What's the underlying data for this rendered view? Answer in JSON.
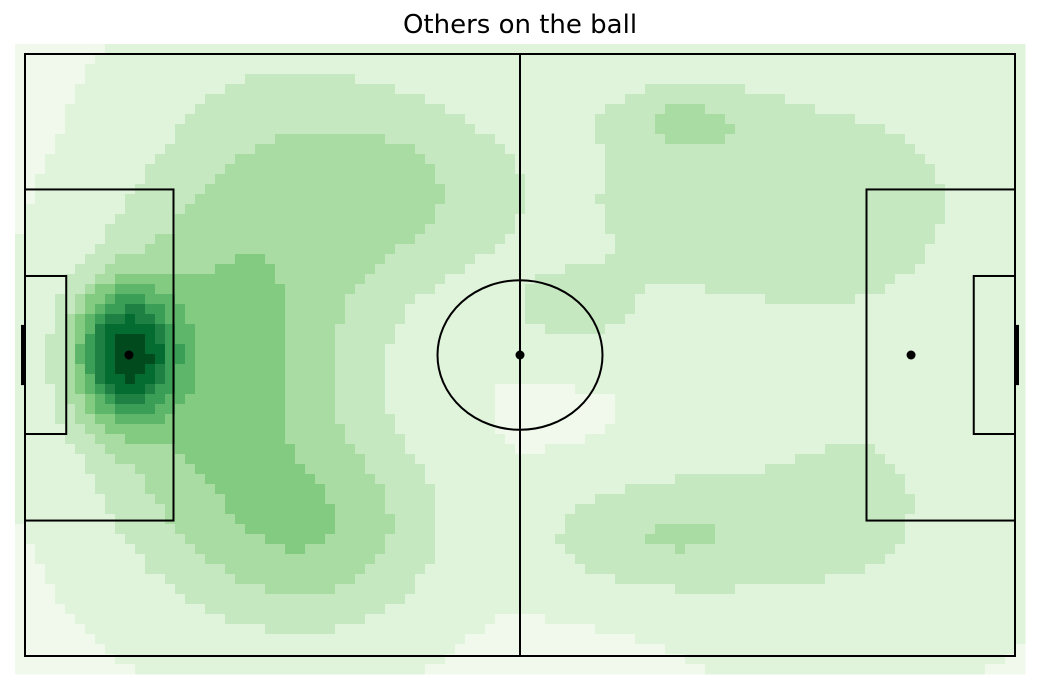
{
  "chart_data": {
    "type": "heatmap",
    "title": "Others on the ball",
    "xlabel": "",
    "ylabel": "",
    "grid": false,
    "legend": "none",
    "colormap": "Greens",
    "colormap_levels": [
      "#f0f9ec",
      "#e0f3db",
      "#c6e8c0",
      "#a8dca2",
      "#84cb82",
      "#5db66a",
      "#3b9e56",
      "#1e8143",
      "#046c30",
      "#004a1e"
    ],
    "pitch": {
      "length": 120,
      "width": 80,
      "line_color": "#000000"
    },
    "density_peaks": [
      {
        "x": 12.5,
        "y": 40,
        "weight": 9.0,
        "sx": 3.6,
        "sy": 5.2
      },
      {
        "x": 22,
        "y": 44,
        "weight": 1.8,
        "sx": 9,
        "sy": 14
      },
      {
        "x": 35,
        "y": 63,
        "weight": 1.6,
        "sx": 9,
        "sy": 8
      },
      {
        "x": 44,
        "y": 18,
        "weight": 1.1,
        "sx": 10,
        "sy": 8
      },
      {
        "x": 30,
        "y": 28,
        "weight": 1.0,
        "sx": 10,
        "sy": 18
      },
      {
        "x": 78,
        "y": 64,
        "weight": 1.0,
        "sx": 10,
        "sy": 5
      },
      {
        "x": 80,
        "y": 9,
        "weight": 0.9,
        "sx": 6,
        "sy": 3
      },
      {
        "x": 66,
        "y": 34,
        "weight": 0.5,
        "sx": 6,
        "sy": 4
      },
      {
        "x": 85,
        "y": 20,
        "weight": 0.7,
        "sx": 14,
        "sy": 10
      },
      {
        "x": 100,
        "y": 60,
        "weight": 0.5,
        "sx": 12,
        "sy": 12
      },
      {
        "x": 105,
        "y": 20,
        "weight": 0.35,
        "sx": 12,
        "sy": 14
      }
    ]
  }
}
